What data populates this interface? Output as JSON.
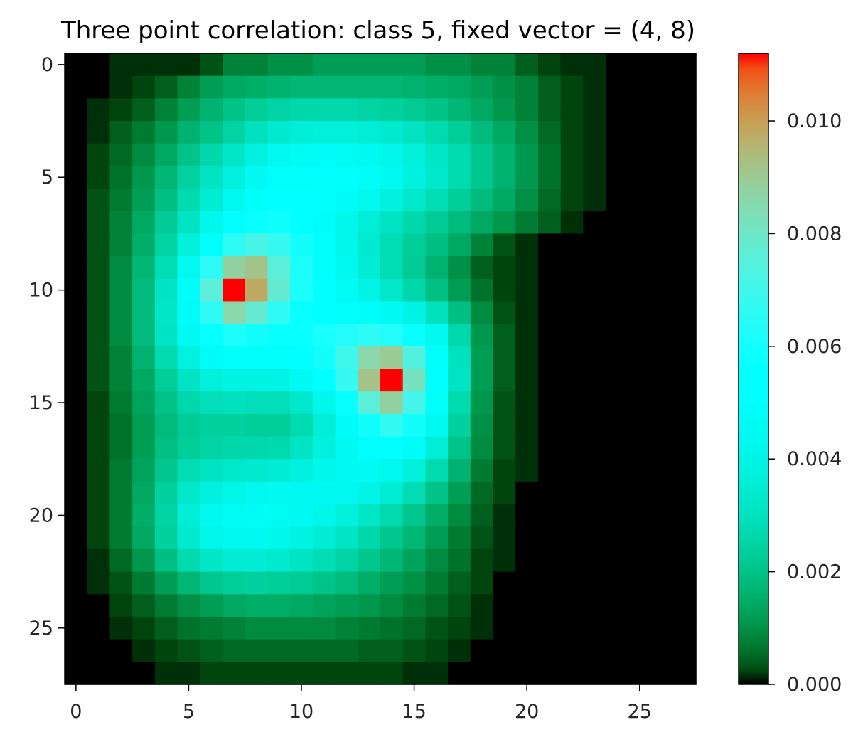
{
  "chart_data": {
    "type": "heatmap",
    "title": "Three point correlation: class 5, fixed vector = (4, 8)",
    "xlabel": "",
    "ylabel": "",
    "colormap": "rainbow",
    "grid": false,
    "xlim": [
      -0.5,
      27.5
    ],
    "ylim": [
      27.5,
      -0.5
    ],
    "x_ticks": [
      0,
      5,
      10,
      15,
      20,
      25
    ],
    "y_ticks": [
      0,
      5,
      10,
      15,
      20,
      25
    ],
    "x_tick_labels": [
      "0",
      "5",
      "10",
      "15",
      "20",
      "25"
    ],
    "y_tick_labels": [
      "0",
      "5",
      "10",
      "15",
      "20",
      "25"
    ],
    "colorbar": {
      "min": 0.0,
      "max": 0.0112,
      "ticks": [
        0.0,
        0.002,
        0.004,
        0.006,
        0.008,
        0.01
      ],
      "tick_labels": [
        "0.000",
        "0.002",
        "0.004",
        "0.006",
        "0.008",
        "0.010"
      ]
    },
    "values": [
      [
        0.0,
        0.0,
        0.0001,
        0.0001,
        0.0001,
        0.0001,
        0.0003,
        0.0008,
        0.0008,
        0.001,
        0.001,
        0.0012,
        0.0012,
        0.0012,
        0.0012,
        0.0012,
        0.001,
        0.001,
        0.0008,
        0.0008,
        0.0004,
        0.0002,
        0.0001,
        0.0001,
        0.0,
        0.0,
        0.0,
        0.0
      ],
      [
        0.0,
        0.0,
        0.0001,
        0.0002,
        0.0004,
        0.0008,
        0.0012,
        0.0014,
        0.0015,
        0.0016,
        0.0017,
        0.0017,
        0.0017,
        0.0017,
        0.0017,
        0.0016,
        0.0015,
        0.0014,
        0.0012,
        0.001,
        0.0008,
        0.0004,
        0.0002,
        0.0001,
        0.0,
        0.0,
        0.0,
        0.0
      ],
      [
        0.0,
        0.0001,
        0.0002,
        0.0004,
        0.0008,
        0.0012,
        0.0016,
        0.002,
        0.0023,
        0.0025,
        0.0026,
        0.0026,
        0.0026,
        0.0025,
        0.0024,
        0.0022,
        0.002,
        0.0017,
        0.0014,
        0.0011,
        0.0008,
        0.0004,
        0.0002,
        0.0001,
        0.0,
        0.0,
        0.0,
        0.0
      ],
      [
        0.0,
        0.0001,
        0.0004,
        0.0007,
        0.0011,
        0.0016,
        0.002,
        0.0025,
        0.003,
        0.0034,
        0.0036,
        0.0037,
        0.0037,
        0.0036,
        0.0034,
        0.0031,
        0.0027,
        0.0023,
        0.0018,
        0.0014,
        0.001,
        0.0005,
        0.0002,
        0.0001,
        0.0,
        0.0,
        0.0,
        0.0
      ],
      [
        0.0,
        0.0002,
        0.0005,
        0.0009,
        0.0014,
        0.002,
        0.0026,
        0.0032,
        0.0038,
        0.0043,
        0.0046,
        0.0047,
        0.0046,
        0.0044,
        0.0041,
        0.0037,
        0.0032,
        0.0027,
        0.0021,
        0.0016,
        0.0011,
        0.0006,
        0.0002,
        0.0001,
        0.0,
        0.0,
        0.0,
        0.0
      ],
      [
        0.0,
        0.0002,
        0.0006,
        0.0011,
        0.0017,
        0.0024,
        0.0031,
        0.0038,
        0.0045,
        0.005,
        0.0052,
        0.0052,
        0.005,
        0.0047,
        0.0043,
        0.0038,
        0.0033,
        0.0027,
        0.0021,
        0.0016,
        0.0011,
        0.0006,
        0.0002,
        0.0001,
        0.0,
        0.0,
        0.0,
        0.0
      ],
      [
        0.0,
        0.0003,
        0.0007,
        0.0012,
        0.0019,
        0.0027,
        0.0035,
        0.0043,
        0.005,
        0.0054,
        0.0054,
        0.0051,
        0.0047,
        0.0043,
        0.0038,
        0.0033,
        0.0028,
        0.0023,
        0.0018,
        0.0014,
        0.001,
        0.0005,
        0.0002,
        0.0001,
        0.0,
        0.0,
        0.0,
        0.0
      ],
      [
        0.0,
        0.0003,
        0.0008,
        0.0014,
        0.0022,
        0.0031,
        0.0042,
        0.0052,
        0.0058,
        0.0059,
        0.0056,
        0.0049,
        0.0042,
        0.0036,
        0.0031,
        0.0026,
        0.0022,
        0.0018,
        0.0014,
        0.0011,
        0.0007,
        0.0004,
        0.0001,
        0.0,
        0.0,
        0.0,
        0.0,
        0.0
      ],
      [
        0.0,
        0.0003,
        0.0008,
        0.0015,
        0.0025,
        0.0037,
        0.0052,
        0.0066,
        0.0072,
        0.0068,
        0.006,
        0.005,
        0.0041,
        0.0034,
        0.0028,
        0.0023,
        0.0019,
        0.0014,
        0.0008,
        0.0003,
        0.0001,
        0.0,
        0.0,
        0.0,
        0.0,
        0.0,
        0.0,
        0.0
      ],
      [
        0.0,
        0.0003,
        0.0009,
        0.0017,
        0.0028,
        0.0044,
        0.0066,
        0.0088,
        0.0092,
        0.0076,
        0.0062,
        0.0051,
        0.0043,
        0.0035,
        0.0028,
        0.0022,
        0.0016,
        0.001,
        0.0004,
        0.0002,
        0.0001,
        0.0,
        0.0,
        0.0,
        0.0,
        0.0,
        0.0,
        0.0
      ],
      [
        0.0,
        0.0003,
        0.0009,
        0.0018,
        0.0031,
        0.0049,
        0.0076,
        0.0112,
        0.0098,
        0.0078,
        0.0062,
        0.0053,
        0.0046,
        0.004,
        0.0033,
        0.0026,
        0.0019,
        0.0012,
        0.0006,
        0.0002,
        0.0001,
        0.0,
        0.0,
        0.0,
        0.0,
        0.0,
        0.0,
        0.0
      ],
      [
        0.0,
        0.0003,
        0.0009,
        0.0018,
        0.0032,
        0.0048,
        0.0066,
        0.0086,
        0.0078,
        0.0066,
        0.0058,
        0.0054,
        0.0052,
        0.0049,
        0.0045,
        0.004,
        0.003,
        0.0019,
        0.0009,
        0.0003,
        0.0001,
        0.0,
        0.0,
        0.0,
        0.0,
        0.0,
        0.0,
        0.0
      ],
      [
        0.0,
        0.0003,
        0.0009,
        0.0018,
        0.0031,
        0.0045,
        0.0057,
        0.0062,
        0.006,
        0.0058,
        0.0058,
        0.0061,
        0.0064,
        0.0066,
        0.0064,
        0.0058,
        0.0044,
        0.0026,
        0.0011,
        0.0004,
        0.0001,
        0.0,
        0.0,
        0.0,
        0.0,
        0.0,
        0.0,
        0.0
      ],
      [
        0.0,
        0.0003,
        0.0008,
        0.0016,
        0.0027,
        0.0038,
        0.0047,
        0.005,
        0.005,
        0.005,
        0.0053,
        0.006,
        0.007,
        0.0086,
        0.009,
        0.0074,
        0.0052,
        0.003,
        0.0012,
        0.0004,
        0.0001,
        0.0,
        0.0,
        0.0,
        0.0,
        0.0,
        0.0,
        0.0
      ],
      [
        0.0,
        0.0003,
        0.0008,
        0.0014,
        0.0023,
        0.0031,
        0.0037,
        0.0039,
        0.0039,
        0.004,
        0.0045,
        0.0054,
        0.0068,
        0.0092,
        0.0112,
        0.0082,
        0.0056,
        0.0031,
        0.0012,
        0.0004,
        0.0001,
        0.0,
        0.0,
        0.0,
        0.0,
        0.0,
        0.0,
        0.0
      ],
      [
        0.0,
        0.0002,
        0.0007,
        0.0013,
        0.002,
        0.0026,
        0.0029,
        0.003,
        0.0029,
        0.0029,
        0.0033,
        0.0042,
        0.0058,
        0.0076,
        0.0088,
        0.0071,
        0.005,
        0.0027,
        0.0011,
        0.0003,
        0.0001,
        0.0,
        0.0,
        0.0,
        0.0,
        0.0,
        0.0,
        0.0
      ],
      [
        0.0,
        0.0002,
        0.0006,
        0.0012,
        0.0018,
        0.0022,
        0.0024,
        0.0024,
        0.0023,
        0.0023,
        0.0027,
        0.0036,
        0.0048,
        0.006,
        0.0067,
        0.006,
        0.0044,
        0.0024,
        0.001,
        0.0003,
        0.0001,
        0.0,
        0.0,
        0.0,
        0.0,
        0.0,
        0.0,
        0.0
      ],
      [
        0.0,
        0.0002,
        0.0006,
        0.0012,
        0.0019,
        0.0023,
        0.0025,
        0.0026,
        0.0026,
        0.0027,
        0.0031,
        0.0038,
        0.0045,
        0.0051,
        0.0053,
        0.0048,
        0.0036,
        0.002,
        0.0009,
        0.0003,
        0.0001,
        0.0,
        0.0,
        0.0,
        0.0,
        0.0,
        0.0,
        0.0
      ],
      [
        0.0,
        0.0002,
        0.0007,
        0.0013,
        0.0021,
        0.0028,
        0.0031,
        0.0033,
        0.0034,
        0.0035,
        0.0038,
        0.0042,
        0.0045,
        0.0046,
        0.0043,
        0.0037,
        0.0027,
        0.0016,
        0.0007,
        0.0002,
        0.0001,
        0.0,
        0.0,
        0.0,
        0.0,
        0.0,
        0.0,
        0.0
      ],
      [
        0.0,
        0.0002,
        0.0007,
        0.0014,
        0.0024,
        0.0033,
        0.0038,
        0.0041,
        0.0043,
        0.0044,
        0.0045,
        0.0045,
        0.0043,
        0.004,
        0.0035,
        0.0028,
        0.002,
        0.0012,
        0.0005,
        0.0002,
        0.0,
        0.0,
        0.0,
        0.0,
        0.0,
        0.0,
        0.0,
        0.0
      ],
      [
        0.0,
        0.0002,
        0.0007,
        0.0015,
        0.0025,
        0.0036,
        0.0043,
        0.0046,
        0.0047,
        0.0046,
        0.0044,
        0.0041,
        0.0037,
        0.0032,
        0.0027,
        0.0021,
        0.0015,
        0.0009,
        0.0004,
        0.0001,
        0.0,
        0.0,
        0.0,
        0.0,
        0.0,
        0.0,
        0.0,
        0.0
      ],
      [
        0.0,
        0.0002,
        0.0007,
        0.0014,
        0.0024,
        0.0034,
        0.0041,
        0.0044,
        0.0044,
        0.0042,
        0.0039,
        0.0035,
        0.0031,
        0.0026,
        0.0021,
        0.0017,
        0.0012,
        0.0007,
        0.0003,
        0.0001,
        0.0,
        0.0,
        0.0,
        0.0,
        0.0,
        0.0,
        0.0,
        0.0
      ],
      [
        0.0,
        0.0001,
        0.0005,
        0.0011,
        0.0019,
        0.0027,
        0.0032,
        0.0035,
        0.0035,
        0.0034,
        0.0031,
        0.0028,
        0.0025,
        0.0021,
        0.0017,
        0.0013,
        0.0009,
        0.0006,
        0.0002,
        0.0001,
        0.0,
        0.0,
        0.0,
        0.0,
        0.0,
        0.0,
        0.0,
        0.0
      ],
      [
        0.0,
        0.0001,
        0.0003,
        0.0007,
        0.0012,
        0.0017,
        0.0021,
        0.0023,
        0.0024,
        0.0023,
        0.0022,
        0.002,
        0.0018,
        0.0015,
        0.0012,
        0.001,
        0.0007,
        0.0004,
        0.0002,
        0.0,
        0.0,
        0.0,
        0.0,
        0.0,
        0.0,
        0.0,
        0.0,
        0.0
      ],
      [
        0.0,
        0.0,
        0.0002,
        0.0004,
        0.0007,
        0.001,
        0.0012,
        0.0014,
        0.0015,
        0.0015,
        0.0014,
        0.0013,
        0.0012,
        0.0011,
        0.0009,
        0.0007,
        0.0005,
        0.0003,
        0.0001,
        0.0,
        0.0,
        0.0,
        0.0,
        0.0,
        0.0,
        0.0,
        0.0,
        0.0
      ],
      [
        0.0,
        0.0,
        0.0001,
        0.0002,
        0.0004,
        0.0006,
        0.0007,
        0.0008,
        0.0009,
        0.0009,
        0.0009,
        0.0009,
        0.0008,
        0.0007,
        0.0006,
        0.0005,
        0.0003,
        0.0002,
        0.0001,
        0.0,
        0.0,
        0.0,
        0.0,
        0.0,
        0.0,
        0.0,
        0.0,
        0.0
      ],
      [
        0.0,
        0.0,
        0.0,
        0.0001,
        0.0002,
        0.0003,
        0.0004,
        0.0005,
        0.0005,
        0.0005,
        0.0005,
        0.0005,
        0.0005,
        0.0004,
        0.0004,
        0.0003,
        0.0002,
        0.0001,
        0.0,
        0.0,
        0.0,
        0.0,
        0.0,
        0.0,
        0.0,
        0.0,
        0.0,
        0.0
      ],
      [
        0.0,
        0.0,
        0.0,
        0.0,
        0.0001,
        0.0001,
        0.0002,
        0.0002,
        0.0002,
        0.0002,
        0.0002,
        0.0002,
        0.0002,
        0.0002,
        0.0002,
        0.0001,
        0.0001,
        0.0,
        0.0,
        0.0,
        0.0,
        0.0,
        0.0,
        0.0,
        0.0,
        0.0,
        0.0,
        0.0
      ]
    ]
  }
}
